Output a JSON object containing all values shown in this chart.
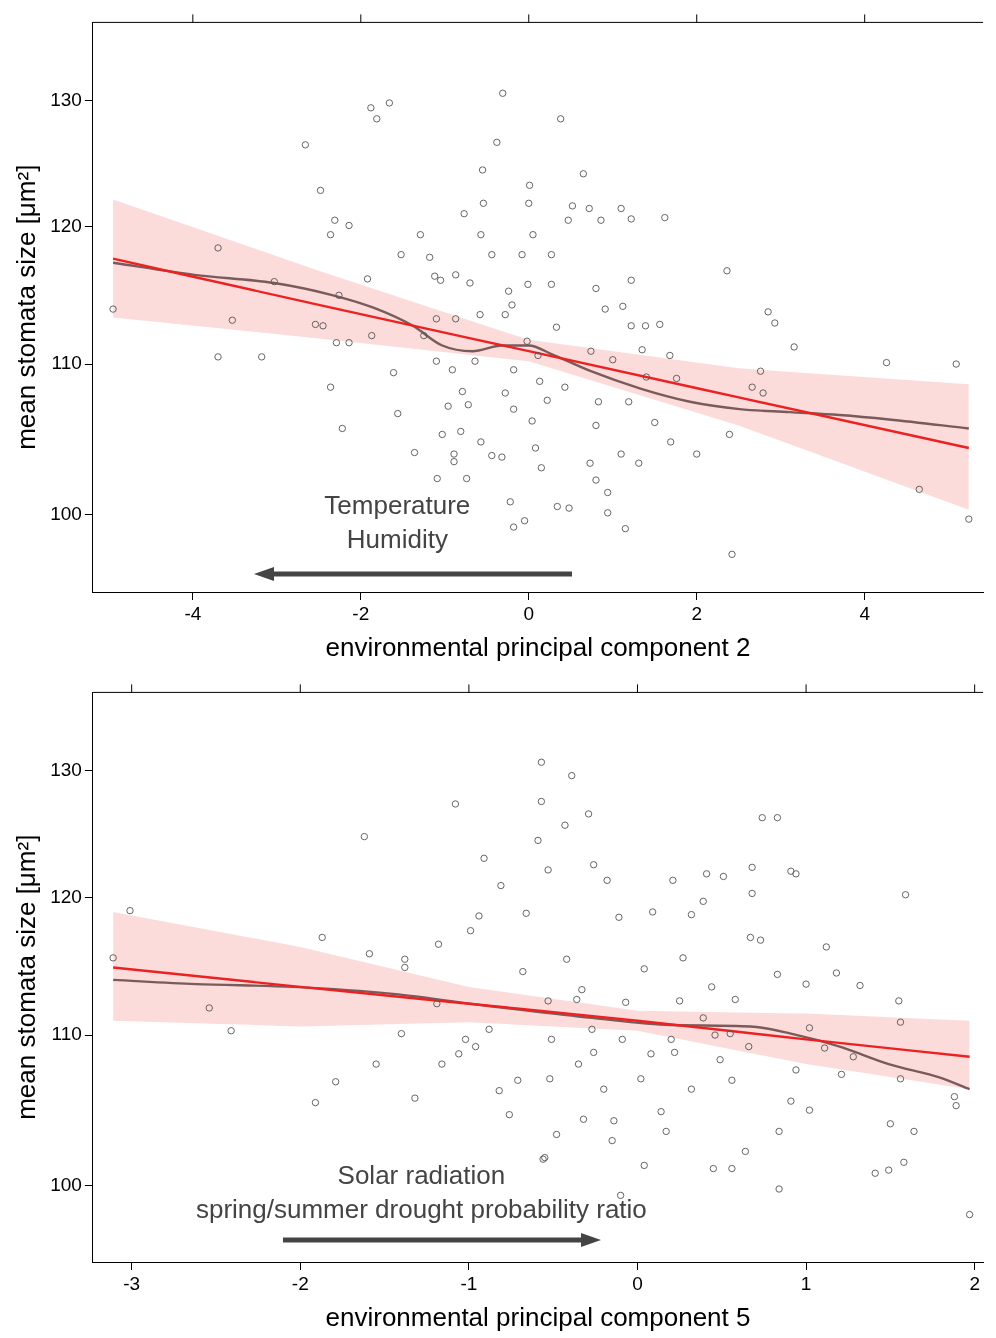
{
  "chart_data": [
    {
      "type": "scatter",
      "xlabel": "environmental principal component 2",
      "ylabel": "mean stomata size [μm²]",
      "log": "y",
      "xlim": [
        -5.19,
        5.41
      ],
      "ylim": [
        95.2,
        136.6
      ],
      "xticks": [
        -4,
        -2,
        0,
        2,
        4
      ],
      "yticks": [
        100,
        110,
        120,
        130
      ],
      "annotations": [
        "Temperature",
        "Humidity"
      ],
      "series": [
        {
          "type": "scatter",
          "color": "#555555",
          "marker": "circle",
          "x": [
            -4.95,
            -3.7,
            -3.53,
            -3.7,
            -3.18,
            -3.03,
            -2.66,
            -2.48,
            -2.31,
            -2.36,
            -2.14,
            -2.26,
            -2.54,
            -2.45,
            -2.29,
            -2.14,
            -2.36,
            -2.22,
            -1.88,
            -1.81,
            -1.66,
            -1.92,
            -1.87,
            -1.61,
            -1.56,
            -1.52,
            -1.29,
            -1.36,
            -1.18,
            -1.12,
            -1.05,
            -1.25,
            -1.1,
            -1.1,
            -1.03,
            -0.89,
            -0.89,
            -0.91,
            -0.77,
            -0.87,
            -0.7,
            -0.87,
            -0.55,
            -0.54,
            -0.57,
            -0.44,
            -0.38,
            -0.31,
            -0.58,
            -0.72,
            -0.74,
            -0.57,
            -0.44,
            -0.32,
            -0.22,
            -0.18,
            -0.05,
            0.01,
            0,
            0.05,
            -0.08,
            -0.01,
            -0.2,
            -0.02,
            0.11,
            0.13,
            0.04,
            0.08,
            0.15,
            0.27,
            0.27,
            0.38,
            0.43,
            0.34,
            0.48,
            0.47,
            0.65,
            0.52,
            0.72,
            0.86,
            0.8,
            0.91,
            0.74,
            0.83,
            0.8,
            0.73,
            0.8,
            0.94,
            0.94,
            1.15,
            1.1,
            1.22,
            1.22,
            1.12,
            1.22,
            1,
            1.19,
            1.1,
            1.31,
            1.39,
            1.35,
            1.4,
            1.5,
            1.62,
            1.56,
            1.68,
            1.76,
            1.69,
            2,
            2.36,
            2.39,
            2.42,
            2.66,
            2.76,
            2.79,
            2.85,
            2.93,
            3.16,
            4.26,
            4.65,
            5.09,
            5.24,
            -0.24,
            -0.28,
            -0.18,
            -0.28,
            -0.18,
            0.22,
            0.33,
            -0.79,
            -0.64,
            -0.96,
            -1.09,
            -0.81
          ],
          "values": [
            113.9,
            118.4,
            113.1,
            110.5,
            110.5,
            115.9,
            126.4,
            122.8,
            120.5,
            119.4,
            120.1,
            114.9,
            112.8,
            112.7,
            111.5,
            111.5,
            108.4,
            105.6,
            129.4,
            128.5,
            129.8,
            116.1,
            112,
            109.4,
            106.6,
            117.9,
            119.4,
            104,
            117.7,
            116.3,
            116,
            112,
            113.2,
            110.2,
            105.2,
            103.9,
            103.4,
            109.6,
            121,
            116.4,
            115.8,
            113.2,
            124.4,
            121.8,
            119.4,
            117.9,
            126.6,
            130.6,
            113.5,
            107.2,
            102.3,
            104.7,
            103.8,
            103.7,
            100.8,
            99.2,
            99.6,
            123.2,
            121.8,
            119.4,
            117.9,
            115.7,
            114.2,
            111.6,
            110.6,
            108.8,
            106.1,
            104.3,
            103,
            115.7,
            117.9,
            128.5,
            108.4,
            100.5,
            100.4,
            120.5,
            124.1,
            121.6,
            121.4,
            120.5,
            115.4,
            113.9,
            110.9,
            107.4,
            105.8,
            103.3,
            102.2,
            101.4,
            100.1,
            99.1,
            121.4,
            120.6,
            116,
            114.1,
            112.7,
            110.3,
            107.4,
            103.9,
            103.3,
            112.7,
            111,
            109.1,
            106,
            120.7,
            112.8,
            110.6,
            109,
            104.7,
            103.9,
            116.7,
            105.2,
            97.5,
            108.4,
            109.5,
            108,
            113.7,
            112.9,
            111.2,
            110.1,
            101.6,
            110,
            99.7,
            115.2,
            113.5,
            109.6,
            108,
            106.9,
            107.5,
            112.6,
            108.1,
            110.2,
            107.1,
            102.3,
            105.4
          ]
        },
        {
          "type": "line",
          "color": "#ee2222",
          "x": [
            -4.95,
            -2.5,
            0,
            2.5,
            5.24
          ],
          "values": [
            117.6,
            114.2,
            110.9,
            107.7,
            104.3
          ],
          "lower": [
            113.3,
            111.8,
            110.2,
            105.8,
            100.3
          ],
          "upper": [
            122.1,
            116.7,
            111.7,
            109.7,
            108.6
          ]
        },
        {
          "type": "line",
          "color": "#666666",
          "x": [
            -4.95,
            -3.98,
            -3.03,
            -2.33,
            -1.85,
            -1.38,
            -1.03,
            -0.67,
            -0.32,
            0,
            0.27,
            0.74,
            1.33,
            1.92,
            2.51,
            3.11,
            3.7,
            4.29,
            5.24
          ],
          "values": [
            117.3,
            116.4,
            115.8,
            114.9,
            114,
            112.7,
            111.3,
            110.9,
            111.3,
            111.3,
            110.7,
            109.5,
            108.3,
            107.4,
            106.9,
            106.7,
            106.5,
            106.2,
            105.6
          ]
        }
      ]
    },
    {
      "type": "scatter",
      "xlabel": "environmental principal component 5",
      "ylabel": "mean stomata size [μm²]",
      "log": "y",
      "xlim": [
        -3.23,
        2.05
      ],
      "ylim": [
        95.3,
        136.6
      ],
      "xticks": [
        -3,
        -2,
        -1,
        0,
        1,
        2
      ],
      "yticks": [
        100,
        110,
        120,
        130
      ],
      "annotations": [
        "Solar radiation",
        "spring/summer drought probability ratio"
      ],
      "series": [
        {
          "type": "scatter",
          "color": "#555555",
          "marker": "circle",
          "x": [
            -3.11,
            -3.01,
            -2.54,
            -2.41,
            -1.87,
            -1.79,
            -1.91,
            -1.62,
            -1.59,
            -1.55,
            -1.38,
            -1.38,
            -1.4,
            -1.32,
            -1.19,
            -1.18,
            -1.16,
            -1.08,
            -1.06,
            -1.02,
            -0.99,
            -0.96,
            -0.94,
            -0.91,
            -0.88,
            -0.82,
            -0.81,
            -0.76,
            -0.71,
            -0.66,
            -0.68,
            -0.59,
            -0.57,
            -0.57,
            -0.53,
            -0.53,
            -0.52,
            -0.56,
            -0.55,
            -0.48,
            -0.43,
            -0.39,
            -0.36,
            -0.35,
            -0.32,
            -0.29,
            -0.26,
            -0.26,
            -0.2,
            -0.18,
            -0.14,
            -0.11,
            -0.07,
            -0.15,
            -0.1,
            0.04,
            0.04,
            0.09,
            0.08,
            0.14,
            0.17,
            0.21,
            0.22,
            0.25,
            0.27,
            0.32,
            0.39,
            0.39,
            0.41,
            0.44,
            0.46,
            0.45,
            0.51,
            0.55,
            0.58,
            0.56,
            0.56,
            0.66,
            0.64,
            0.67,
            0.68,
            0.68,
            0.73,
            0.74,
            0.83,
            0.84,
            0.84,
            0.83,
            0.91,
            0.94,
            0.91,
            0.94,
            1.02,
            1.02,
            1,
            1.12,
            1.18,
            1.11,
            1.21,
            1.28,
            1.32,
            1.41,
            1.5,
            1.49,
            1.58,
            1.56,
            1.56,
            1.55,
            1.59,
            1.64,
            1.88,
            1.89,
            1.97,
            -0.33,
            -0.09,
            -0.27,
            -0.51,
            -0.42,
            0.02,
            0.32,
            0.49,
            0.2
          ],
          "values": [
            115.5,
            119,
            111.9,
            110.3,
            117,
            106.8,
            105.4,
            124.7,
            115.8,
            108,
            114.8,
            115.4,
            110.1,
            105.7,
            112.2,
            116.5,
            108,
            127.3,
            108.7,
            109.7,
            117.5,
            109.2,
            118.6,
            123,
            110.4,
            106.2,
            120.9,
            104.6,
            106.9,
            118.8,
            114.5,
            124.4,
            130.7,
            127.5,
            122.1,
            112.4,
            107,
            101.7,
            101.8,
            103.3,
            125.6,
            129.6,
            112.5,
            108,
            104.3,
            126.5,
            122.5,
            108.8,
            106.3,
            121.3,
            104.2,
            118.5,
            112.3,
            102.9,
            99.4,
            101.3,
            114.7,
            118.9,
            108.7,
            104.8,
            103.5,
            121.3,
            108.8,
            112.4,
            115.5,
            118.7,
            111.2,
            119.7,
            121.8,
            113.4,
            110,
            101.1,
            121.6,
            110.1,
            112.5,
            106.9,
            101.1,
            109.2,
            102.2,
            117,
            122.3,
            120.3,
            116.8,
            126.2,
            126.2,
            99.8,
            103.5,
            114.3,
            122,
            121.8,
            105.5,
            107.6,
            104.9,
            110.5,
            113.6,
            116.3,
            114.4,
            109.1,
            107.3,
            108.5,
            113.5,
            100.8,
            104,
            101,
            101.5,
            107,
            110.9,
            112.4,
            120.2,
            103.5,
            105.8,
            105.2,
            98.2,
            113.2,
            109.7,
            110.4,
            109.7,
            115.4,
            107,
            106.3,
            108.3,
            109.7
          ]
        },
        {
          "type": "line",
          "color": "#ee2222",
          "x": [
            -3.11,
            -2,
            -1,
            0,
            1,
            1.97
          ],
          "values": [
            114.8,
            113.4,
            112.2,
            111,
            109.7,
            108.5
          ],
          "lower": [
            111,
            110.6,
            110.9,
            110.3,
            108,
            106.3
          ],
          "upper": [
            118.9,
            116.3,
            113.4,
            111.7,
            111.5,
            111
          ]
        },
        {
          "type": "line",
          "color": "#666666",
          "x": [
            -3.11,
            -2.62,
            -2.04,
            -1.45,
            -0.86,
            -0.27,
            0.2,
            0.67,
            0.91,
            1.2,
            1.49,
            1.79,
            1.97
          ],
          "values": [
            113.9,
            113.6,
            113.4,
            112.9,
            112,
            111.2,
            110.7,
            110.6,
            110.1,
            109.2,
            108,
            107.1,
            106.3
          ]
        }
      ]
    }
  ]
}
